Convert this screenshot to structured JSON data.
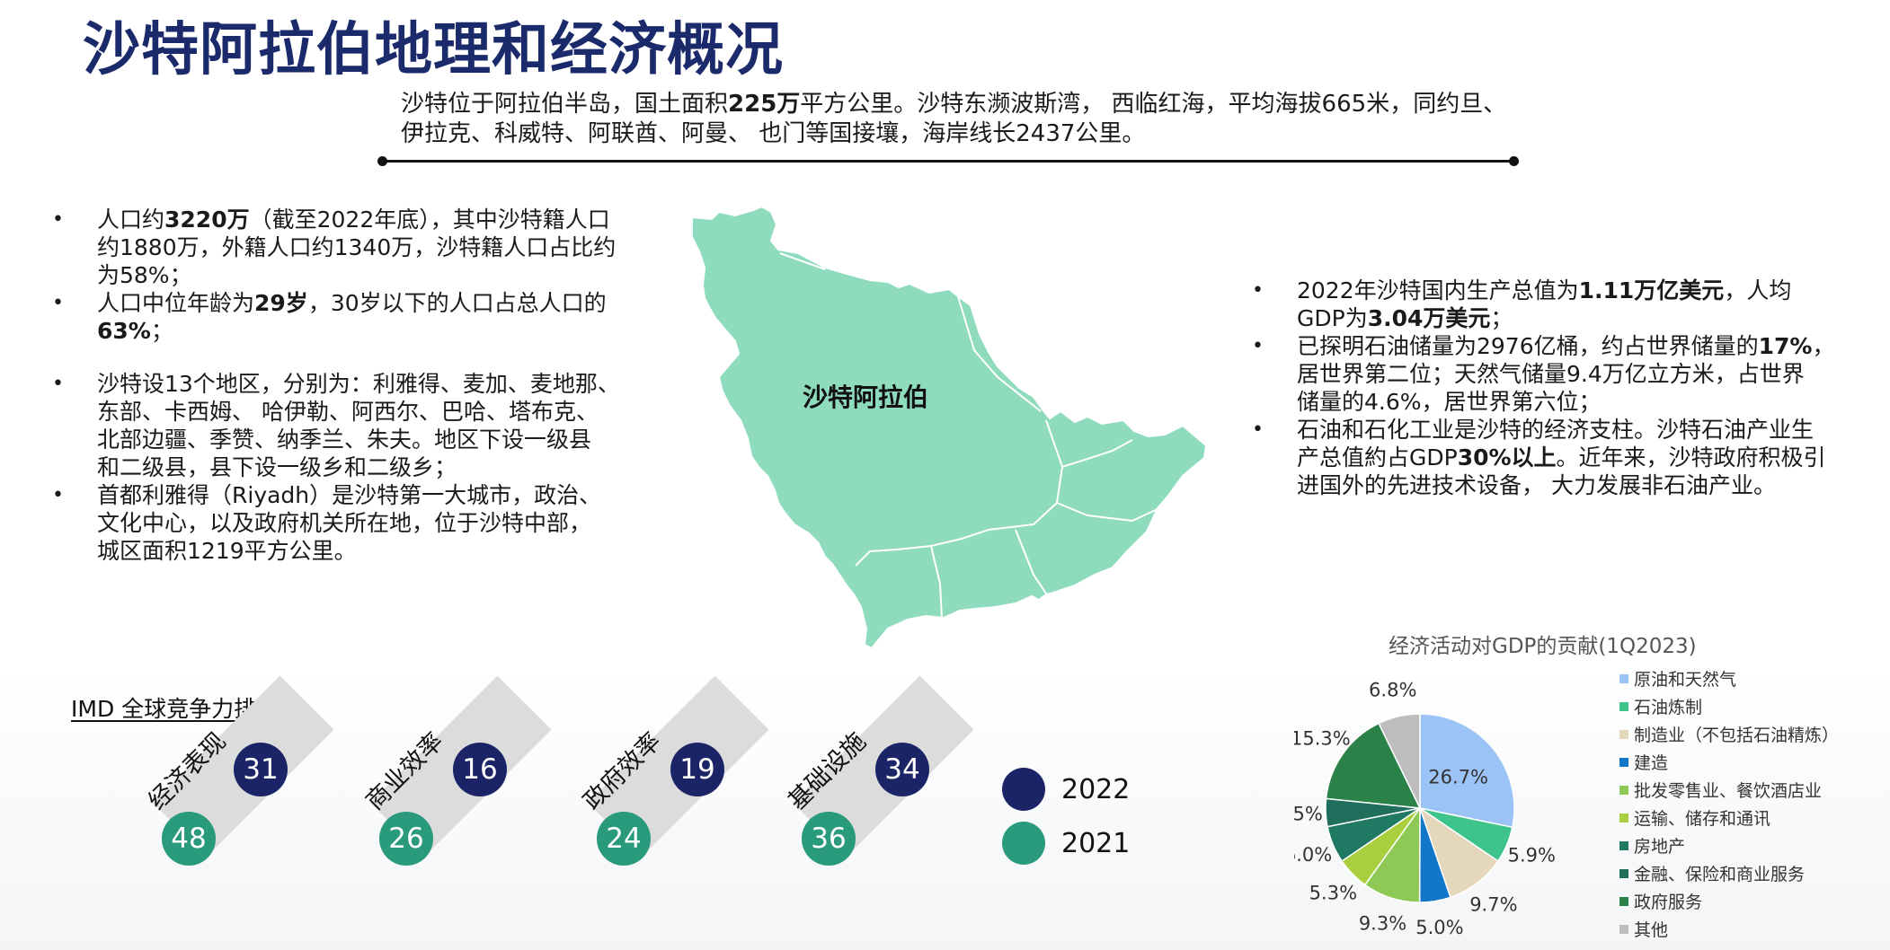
{
  "slide": {
    "title": "沙特阿拉伯地理和经济概况",
    "intro": {
      "line1_a": "沙特位于阿拉伯半岛，国土面积",
      "line1_b": "225万",
      "line1_c": "平方公里。沙特东濒波斯湾， 西临红海，平均海拔665米，同约旦、",
      "line2": "伊拉克、科威特、阿联酋、阿曼、 也门等国接壤，海岸线长2437公里。"
    },
    "left_bullets": [
      {
        "l1_a": "人口约",
        "l1_b": "3220万",
        "l1_c": "（截至2022年底），其中沙特籍人口",
        "l2": "约1880万，外籍人口约1340万，沙特籍人口占比约",
        "l3": "为58%；"
      },
      {
        "l1_a": "人口中位年龄为",
        "l1_b": "29岁",
        "l1_c": "，30岁以下的人口占总人口的",
        "l2_a": "63%",
        "l2_b": "；"
      },
      {
        "l1": "沙特设13个地区，分别为：利雅得、麦加、麦地那、",
        "l2": "东部、卡西姆、 哈伊勒、阿西尔、巴哈、塔布克、",
        "l3": "北部边疆、季赞、纳季兰、朱夫。地区下设一级县",
        "l4": "和二级县，县下设一级乡和二级乡；"
      },
      {
        "l1": "首都利雅得（Riyadh）是沙特第一大城市，政治、",
        "l2": "文化中心，以及政府机关所在地，位于沙特中部，",
        "l3": "城区面积1219平方公里。"
      }
    ],
    "map_label": "沙特阿拉伯",
    "right_bullets": [
      {
        "l1_a": "2022年沙特国内生产总值为",
        "l1_b": "1.11万亿美元",
        "l1_c": "，人均",
        "l2_a": "GDP为",
        "l2_b": "3.04万美元",
        "l2_c": "；"
      },
      {
        "l1_a": "已探明石油储量为2976亿桶，约占世界储量的",
        "l1_b": "17%",
        "l1_c": "，",
        "l2": "居世界第二位；天然气储量9.4万亿立方米，占世界",
        "l3": "储量的4.6%，居世界第六位；"
      },
      {
        "l1": "石油和石化工业是沙特的经济支柱。沙特石油产业生",
        "l2_a": "产总值約占GDP",
        "l2_b": "30%以上",
        "l2_c": "。近年来，沙特政府积极引",
        "l3": "进国外的先进技术设备， 大力发展非石油产业。"
      }
    ],
    "imd": {
      "title": "IMD 全球竞争力排名",
      "items": [
        {
          "category": "经济表现",
          "y2022": "31",
          "y2021": "48"
        },
        {
          "category": "商业效率",
          "y2022": "16",
          "y2021": "26"
        },
        {
          "category": "政府效率",
          "y2022": "19",
          "y2021": "24"
        },
        {
          "category": "基础设施",
          "y2022": "34",
          "y2021": "36"
        }
      ],
      "legend_2022": "2022",
      "legend_2021": "2021",
      "color_2022": "#1b2466",
      "color_2021": "#2a9a7c"
    }
  },
  "chart_data": {
    "type": "pie",
    "title": "经济活动对GDP的贡献(1Q2023)",
    "legend_position": "right",
    "categories": [
      "原油和天然气",
      "石油炼制",
      "制造业（不包括石油精炼）",
      "建造",
      "批发零售业、餐饮酒店业",
      "运输、储存和通讯",
      "房地产",
      "金融、保险和商业服务",
      "政府服务",
      "其他"
    ],
    "values": [
      26.7,
      5.9,
      9.7,
      5.0,
      9.3,
      5.3,
      6.0,
      4.5,
      15.3,
      6.8
    ],
    "labels": [
      "26.7%",
      "5.9%",
      "9.7%",
      "5.0%",
      "9.3%",
      "5.3%",
      "6.0%",
      "4.5%",
      "15.3%",
      "6.8%"
    ],
    "colors": [
      "#9cc3f5",
      "#3ec38b",
      "#e5d7bb",
      "#1277c9",
      "#8fc955",
      "#a9cf3e",
      "#207a63",
      "#1f6f5c",
      "#2b8249",
      "#bdbdbd"
    ]
  }
}
